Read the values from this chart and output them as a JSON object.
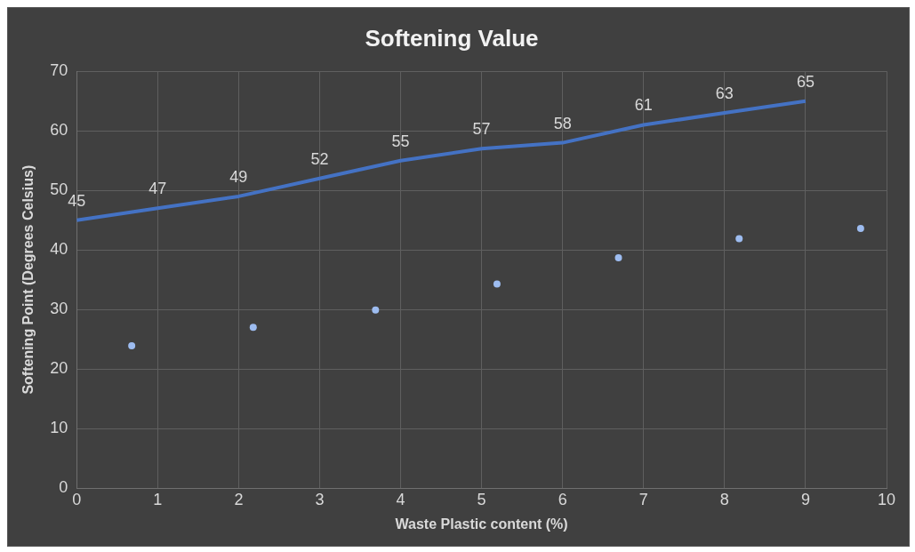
{
  "chart_data": {
    "type": "line",
    "title": "Softening Value",
    "xlabel": "Waste Plastic content (%)",
    "ylabel": "Softening Point (Degrees Celsius)",
    "xlim": [
      0,
      10
    ],
    "xticks": [
      0,
      1,
      2,
      3,
      4,
      5,
      6,
      7,
      8,
      9,
      10
    ],
    "ylim": [
      0,
      70
    ],
    "yticks": [
      0,
      10,
      20,
      30,
      40,
      50,
      60,
      70
    ],
    "grid": true,
    "legend": false,
    "series": [
      {
        "color": "#4472c4",
        "x": [
          0,
          1,
          2,
          3,
          4,
          5,
          6,
          7,
          8,
          9
        ],
        "values": [
          45,
          47,
          49,
          52,
          55,
          57,
          58,
          61,
          63,
          65
        ],
        "data_labels": true,
        "marker": "none"
      },
      {
        "type": "scatter",
        "color": "#9dbcf0",
        "x": [
          0.68,
          2.18,
          3.69,
          5.19,
          6.69,
          8.18,
          9.68
        ],
        "values": [
          23.9,
          27,
          29.9,
          34.3,
          38.7,
          41.9,
          43.6
        ],
        "marker": "circle"
      }
    ]
  }
}
